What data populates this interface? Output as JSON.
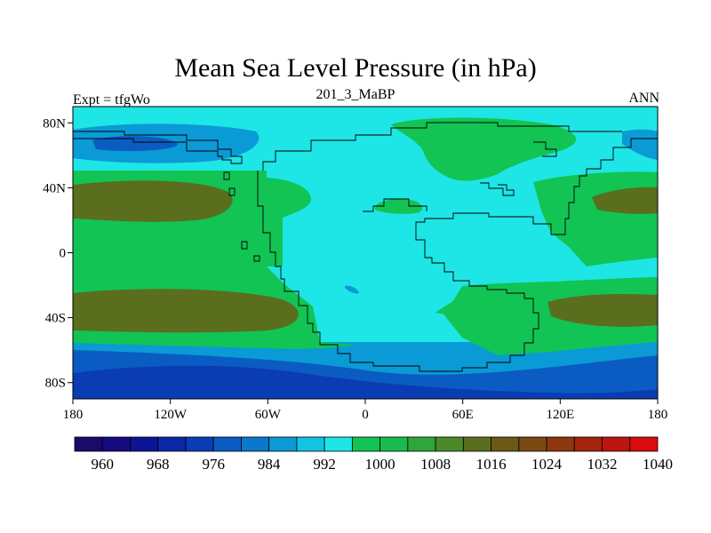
{
  "title": "Mean Sea Level Pressure (in hPa)",
  "subtitle_left": "Expt = tfgWo",
  "subtitle_center": "201_3_MaBP",
  "subtitle_right": "ANN",
  "axes": {
    "x_ticks": [
      {
        "lon": -180,
        "label": "180"
      },
      {
        "lon": -120,
        "label": "120W"
      },
      {
        "lon": -60,
        "label": "60W"
      },
      {
        "lon": 0,
        "label": "0"
      },
      {
        "lon": 60,
        "label": "60E"
      },
      {
        "lon": 120,
        "label": "120E"
      },
      {
        "lon": 180,
        "label": "180"
      }
    ],
    "y_ticks": [
      {
        "lat": 80,
        "label": "80N"
      },
      {
        "lat": 40,
        "label": "40N"
      },
      {
        "lat": 0,
        "label": "0"
      },
      {
        "lat": -40,
        "label": "40S"
      },
      {
        "lat": -80,
        "label": "80S"
      }
    ]
  },
  "colorbar": {
    "levels": [
      960,
      964,
      968,
      972,
      976,
      980,
      984,
      988,
      992,
      996,
      1000,
      1004,
      1008,
      1012,
      1016,
      1020,
      1024,
      1028,
      1032,
      1036,
      1040
    ],
    "labels": [
      "960",
      "968",
      "976",
      "984",
      "992",
      "1000",
      "1008",
      "1016",
      "1024",
      "1032",
      "1040"
    ],
    "colors": [
      "#1a0a6b",
      "#150a80",
      "#0c1496",
      "#0a28a6",
      "#0a3cb4",
      "#0a5cc2",
      "#0a78cc",
      "#0a9ad6",
      "#12c4e4",
      "#1ee6e6",
      "#12c454",
      "#18bb4e",
      "#2fa63a",
      "#4a8a28",
      "#5a6e1e",
      "#6a5a16",
      "#7a4a12",
      "#8e3610",
      "#a4240e",
      "#bc140e",
      "#d80c0c"
    ]
  },
  "colors": {
    "bg_ocean": "#1ee6e6",
    "green_mid": "#12c454",
    "green_dark": "#4a8a28",
    "olive": "#5a6e1e",
    "blue_light": "#0a9ad6",
    "blue_mid": "#0a5cc2",
    "blue_deep": "#0a3cb4",
    "coast": "#000000"
  }
}
